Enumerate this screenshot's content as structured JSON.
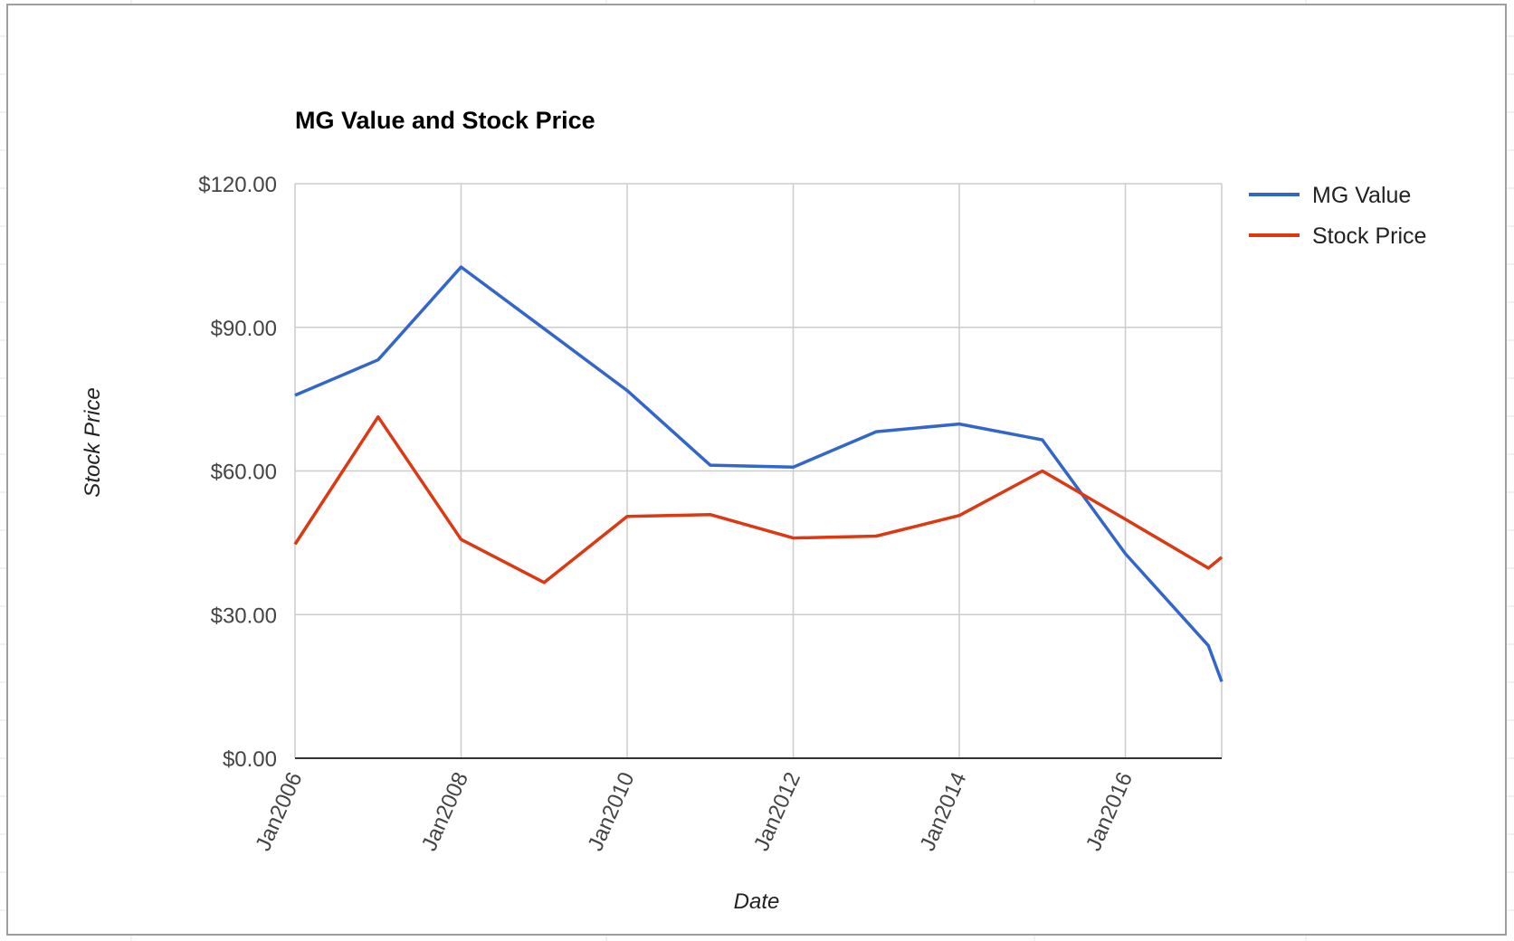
{
  "chart_data": {
    "type": "line",
    "title": "MG Value and Stock Price",
    "xlabel": "Date",
    "ylabel": "Stock Price",
    "x_tick_labels": [
      "Jan2006",
      "Jan2008",
      "Jan2010",
      "Jan2012",
      "Jan2014",
      "Jan2016"
    ],
    "x_ticks": [
      2006,
      2008,
      2010,
      2012,
      2014,
      2016
    ],
    "xlim": [
      2006,
      2017.16
    ],
    "ylim": [
      0,
      120
    ],
    "y_ticks": [
      0,
      30,
      60,
      90,
      120
    ],
    "y_tick_labels": [
      "$0.00",
      "$30.00",
      "$60.00",
      "$90.00",
      "$120.00"
    ],
    "grid": true,
    "legend_position": "right",
    "series": [
      {
        "name": "MG Value",
        "color": "#3366cc",
        "x": [
          2006,
          2007,
          2008,
          2009,
          2010,
          2011,
          2012,
          2013,
          2014,
          2015,
          2016,
          2017,
          2017.16
        ],
        "y": [
          75.8,
          83.2,
          102.6,
          89.7,
          76.8,
          61.2,
          60.8,
          68.2,
          69.8,
          66.5,
          42.7,
          23.5,
          16.0
        ]
      },
      {
        "name": "Stock Price",
        "color": "#dc3912",
        "x": [
          2006,
          2007,
          2008,
          2009,
          2010,
          2011,
          2012,
          2013,
          2014,
          2015,
          2016,
          2017,
          2017.16
        ],
        "y": [
          44.7,
          71.3,
          45.7,
          36.7,
          50.5,
          50.9,
          46.0,
          46.4,
          50.7,
          60.0,
          49.9,
          39.7,
          42.0
        ]
      }
    ]
  }
}
